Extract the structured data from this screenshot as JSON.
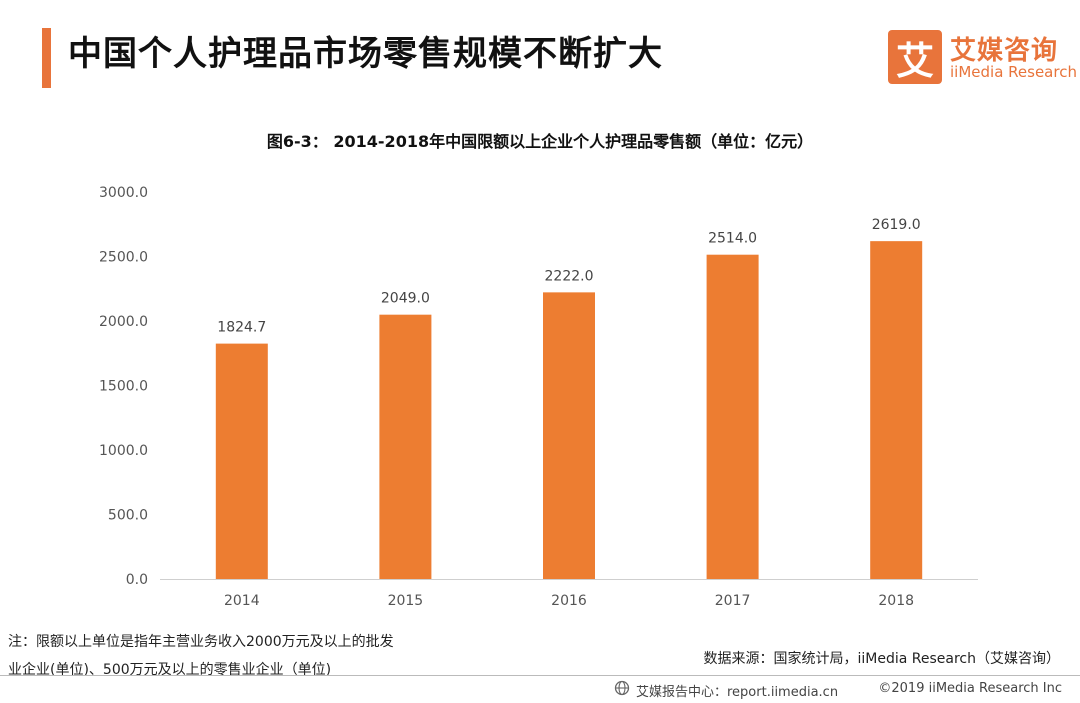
{
  "header": {
    "title": "中国个人护理品市场零售规模不断扩大",
    "brand_mark": "艾",
    "brand_cn": "艾媒咨询",
    "brand_en": "iiMedia Research",
    "accent_color": "#e8743b"
  },
  "chart_data": {
    "type": "bar",
    "title": "图6-3： 2014-2018年中国限额以上企业个人护理品零售额（单位：亿元）",
    "categories": [
      "2014",
      "2015",
      "2016",
      "2017",
      "2018"
    ],
    "values": [
      1824.7,
      2049.0,
      2222.0,
      2514.0,
      2619.0
    ],
    "value_labels": [
      "1824.7",
      "2049.0",
      "2222.0",
      "2514.0",
      "2619.0"
    ],
    "ylim": [
      0,
      3000
    ],
    "yticks": [
      "0.0",
      "500.0",
      "1000.0",
      "1500.0",
      "2000.0",
      "2500.0",
      "3000.0"
    ],
    "grid": false,
    "bar_color": "#ed7d31"
  },
  "footnote": {
    "line1": "注：限额以上单位是指年主营业务收入2000万元及以上的批发",
    "line2": "业企业(单位)、500万元及以上的零售业企业（单位)"
  },
  "source": "数据来源：国家统计局，iiMedia Research（艾媒咨询）",
  "footer": {
    "center": "艾媒报告中心：report.iimedia.cn",
    "right": "©2019  iiMedia Research  Inc",
    "icon": "globe-icon"
  }
}
